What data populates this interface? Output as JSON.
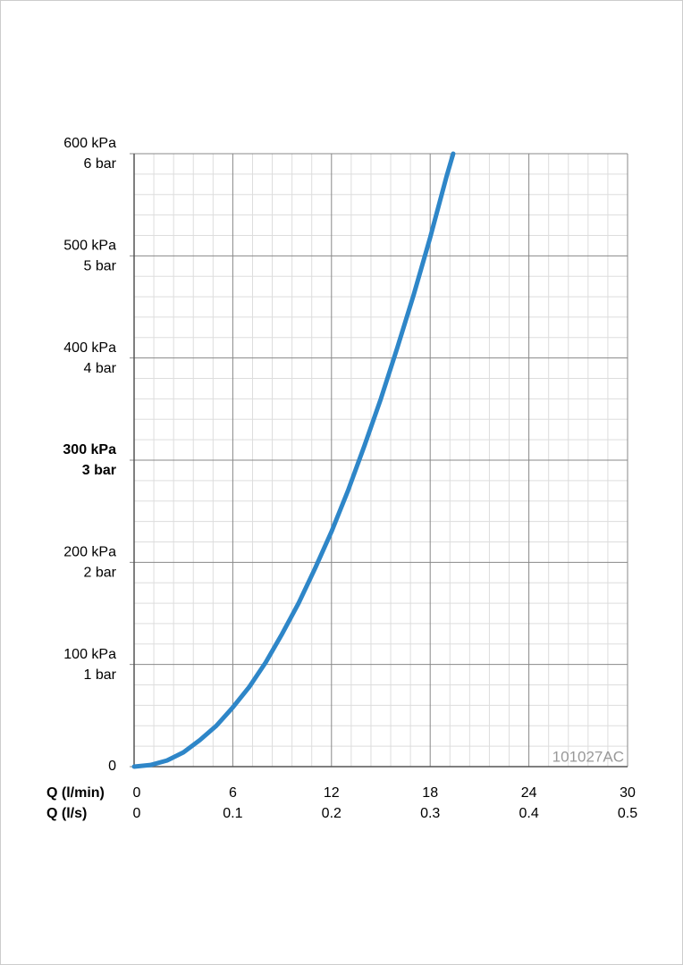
{
  "chart_data": {
    "type": "line",
    "xlabel": "Q (l/min)",
    "x2label": "Q (l/s)",
    "x": [
      0,
      1,
      2,
      3,
      4,
      5,
      6,
      7,
      8,
      9,
      10,
      11,
      12,
      13,
      14,
      15,
      16,
      17,
      18,
      19,
      19.4
    ],
    "series": [
      {
        "color": "#2e86c8",
        "values": [
          0,
          1.6,
          6,
          14,
          26,
          40,
          58,
          78,
          102,
          130,
          160,
          194,
          230,
          270,
          314,
          360,
          410,
          462,
          518,
          578,
          600
        ]
      }
    ],
    "xlim": [
      0,
      30
    ],
    "xticks": [
      0,
      6,
      12,
      18,
      24,
      30
    ],
    "x2lim": [
      0,
      0.5
    ],
    "x2ticks": [
      0,
      0.1,
      0.2,
      0.3,
      0.4,
      0.5
    ],
    "ylim": [
      0,
      600
    ],
    "yticks": [
      0,
      {
        "value": 100,
        "label": "100 kPa"
      },
      {
        "value": 200,
        "label": "200 kPa"
      },
      {
        "value": 300,
        "label": "300 kPa"
      },
      {
        "value": 400,
        "label": "400 kPa"
      },
      {
        "value": 500,
        "label": "500 kPa"
      },
      {
        "value": 600,
        "label": "600 kPa"
      }
    ],
    "y2lim": [
      0,
      6
    ],
    "y2ticks": [
      {
        "value": 1,
        "label": "1 bar"
      },
      {
        "value": 2,
        "label": "2 bar"
      },
      {
        "value": 3,
        "label": "3 bar"
      },
      {
        "value": 4,
        "label": "4 bar"
      },
      {
        "value": 5,
        "label": "5 bar"
      },
      {
        "value": 6,
        "label": "6 bar"
      }
    ],
    "bold_tick_value": 300,
    "grid": true,
    "minor_divisions": 5,
    "annotation": "101027AC"
  }
}
